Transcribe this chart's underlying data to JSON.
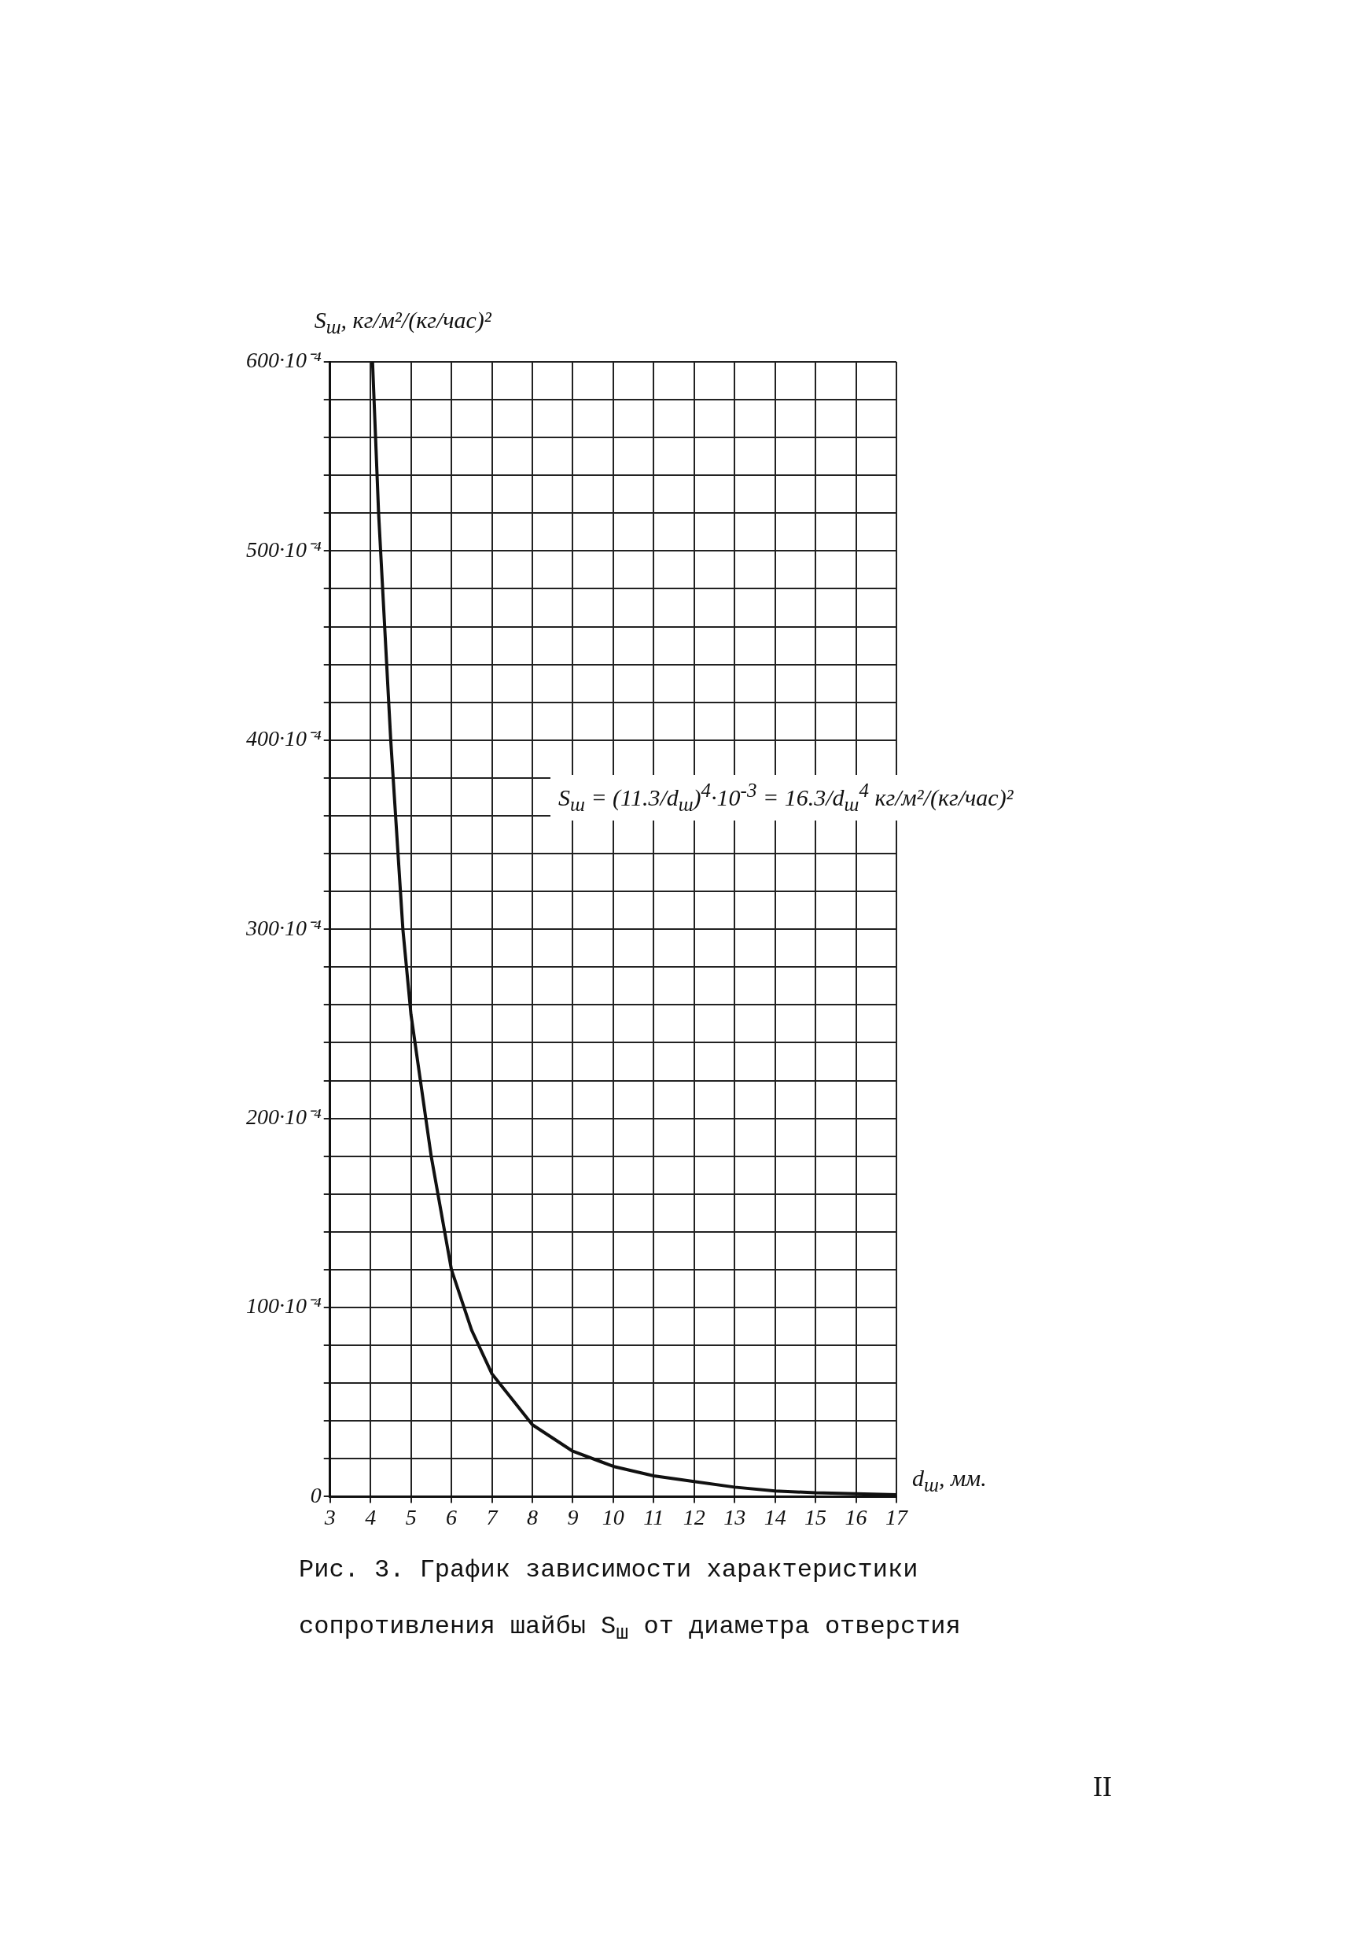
{
  "chart_data": {
    "type": "line",
    "title": "Рис. 3. График зависимости характеристики сопротивления шайбы S$_{ш}$ от диаметра отверстия",
    "xlabel": "d$_{ш}$, мм.",
    "ylabel": "S$_{ш}$, кг/м²/(кг/час)²",
    "annotations": [
      "S$_{ш}$ = (11.3/d$_{ш}$)$^{4}$·10$^{-3}$ = 16.3/d$_{ш}$$^{4}$ кг/м²/(кг/час)²",
      "II"
    ],
    "x": [
      4.05,
      4.2,
      4.5,
      4.8,
      5,
      5.5,
      6,
      6.5,
      7,
      8,
      9,
      10,
      11,
      12,
      13,
      14,
      15,
      16,
      17
    ],
    "series": [
      {
        "color": "#111111",
        "values": [
          0.06,
          0.052,
          0.04,
          0.03,
          0.0255,
          0.018,
          0.012,
          0.0088,
          0.0065,
          0.0038,
          0.0024,
          0.0016,
          0.0011,
          0.0008,
          0.0005,
          0.0003,
          0.0002,
          0.00015,
          0.0001
        ]
      }
    ],
    "xlim": [
      3,
      17
    ],
    "xticks": [
      3,
      4,
      5,
      6,
      7,
      8,
      9,
      10,
      11,
      12,
      13,
      14,
      15,
      16,
      17
    ],
    "ylim": [
      0,
      0.06
    ],
    "yticks": [
      {
        "value": 0,
        "label": "0"
      },
      {
        "value": 0.002,
        "label": null
      },
      {
        "value": 0.004,
        "label": null
      },
      {
        "value": 0.006,
        "label": null
      },
      {
        "value": 0.008,
        "label": null
      },
      {
        "value": 0.01,
        "label": "100·10⁻⁴"
      },
      {
        "value": 0.012,
        "label": null
      },
      {
        "value": 0.014,
        "label": null
      },
      {
        "value": 0.016,
        "label": null
      },
      {
        "value": 0.018,
        "label": null
      },
      {
        "value": 0.02,
        "label": "200·10⁻⁴"
      },
      {
        "value": 0.022,
        "label": null
      },
      {
        "value": 0.024,
        "label": null
      },
      {
        "value": 0.026,
        "label": null
      },
      {
        "value": 0.028,
        "label": null
      },
      {
        "value": 0.03,
        "label": "300·10⁻⁴"
      },
      {
        "value": 0.032,
        "label": null
      },
      {
        "value": 0.034,
        "label": null
      },
      {
        "value": 0.036,
        "label": null
      },
      {
        "value": 0.038,
        "label": null
      },
      {
        "value": 0.04,
        "label": "400·10⁻⁴"
      },
      {
        "value": 0.042,
        "label": null
      },
      {
        "value": 0.044,
        "label": null
      },
      {
        "value": 0.046,
        "label": null
      },
      {
        "value": 0.048,
        "label": null
      },
      {
        "value": 0.05,
        "label": "500·10⁻⁴"
      },
      {
        "value": 0.052,
        "label": null
      },
      {
        "value": 0.054,
        "label": null
      },
      {
        "value": 0.056,
        "label": null
      },
      {
        "value": 0.058,
        "label": null
      },
      {
        "value": 0.06,
        "label": "600·10⁻⁴"
      }
    ],
    "grid": true,
    "marker": "none",
    "line_style": "solid"
  }
}
